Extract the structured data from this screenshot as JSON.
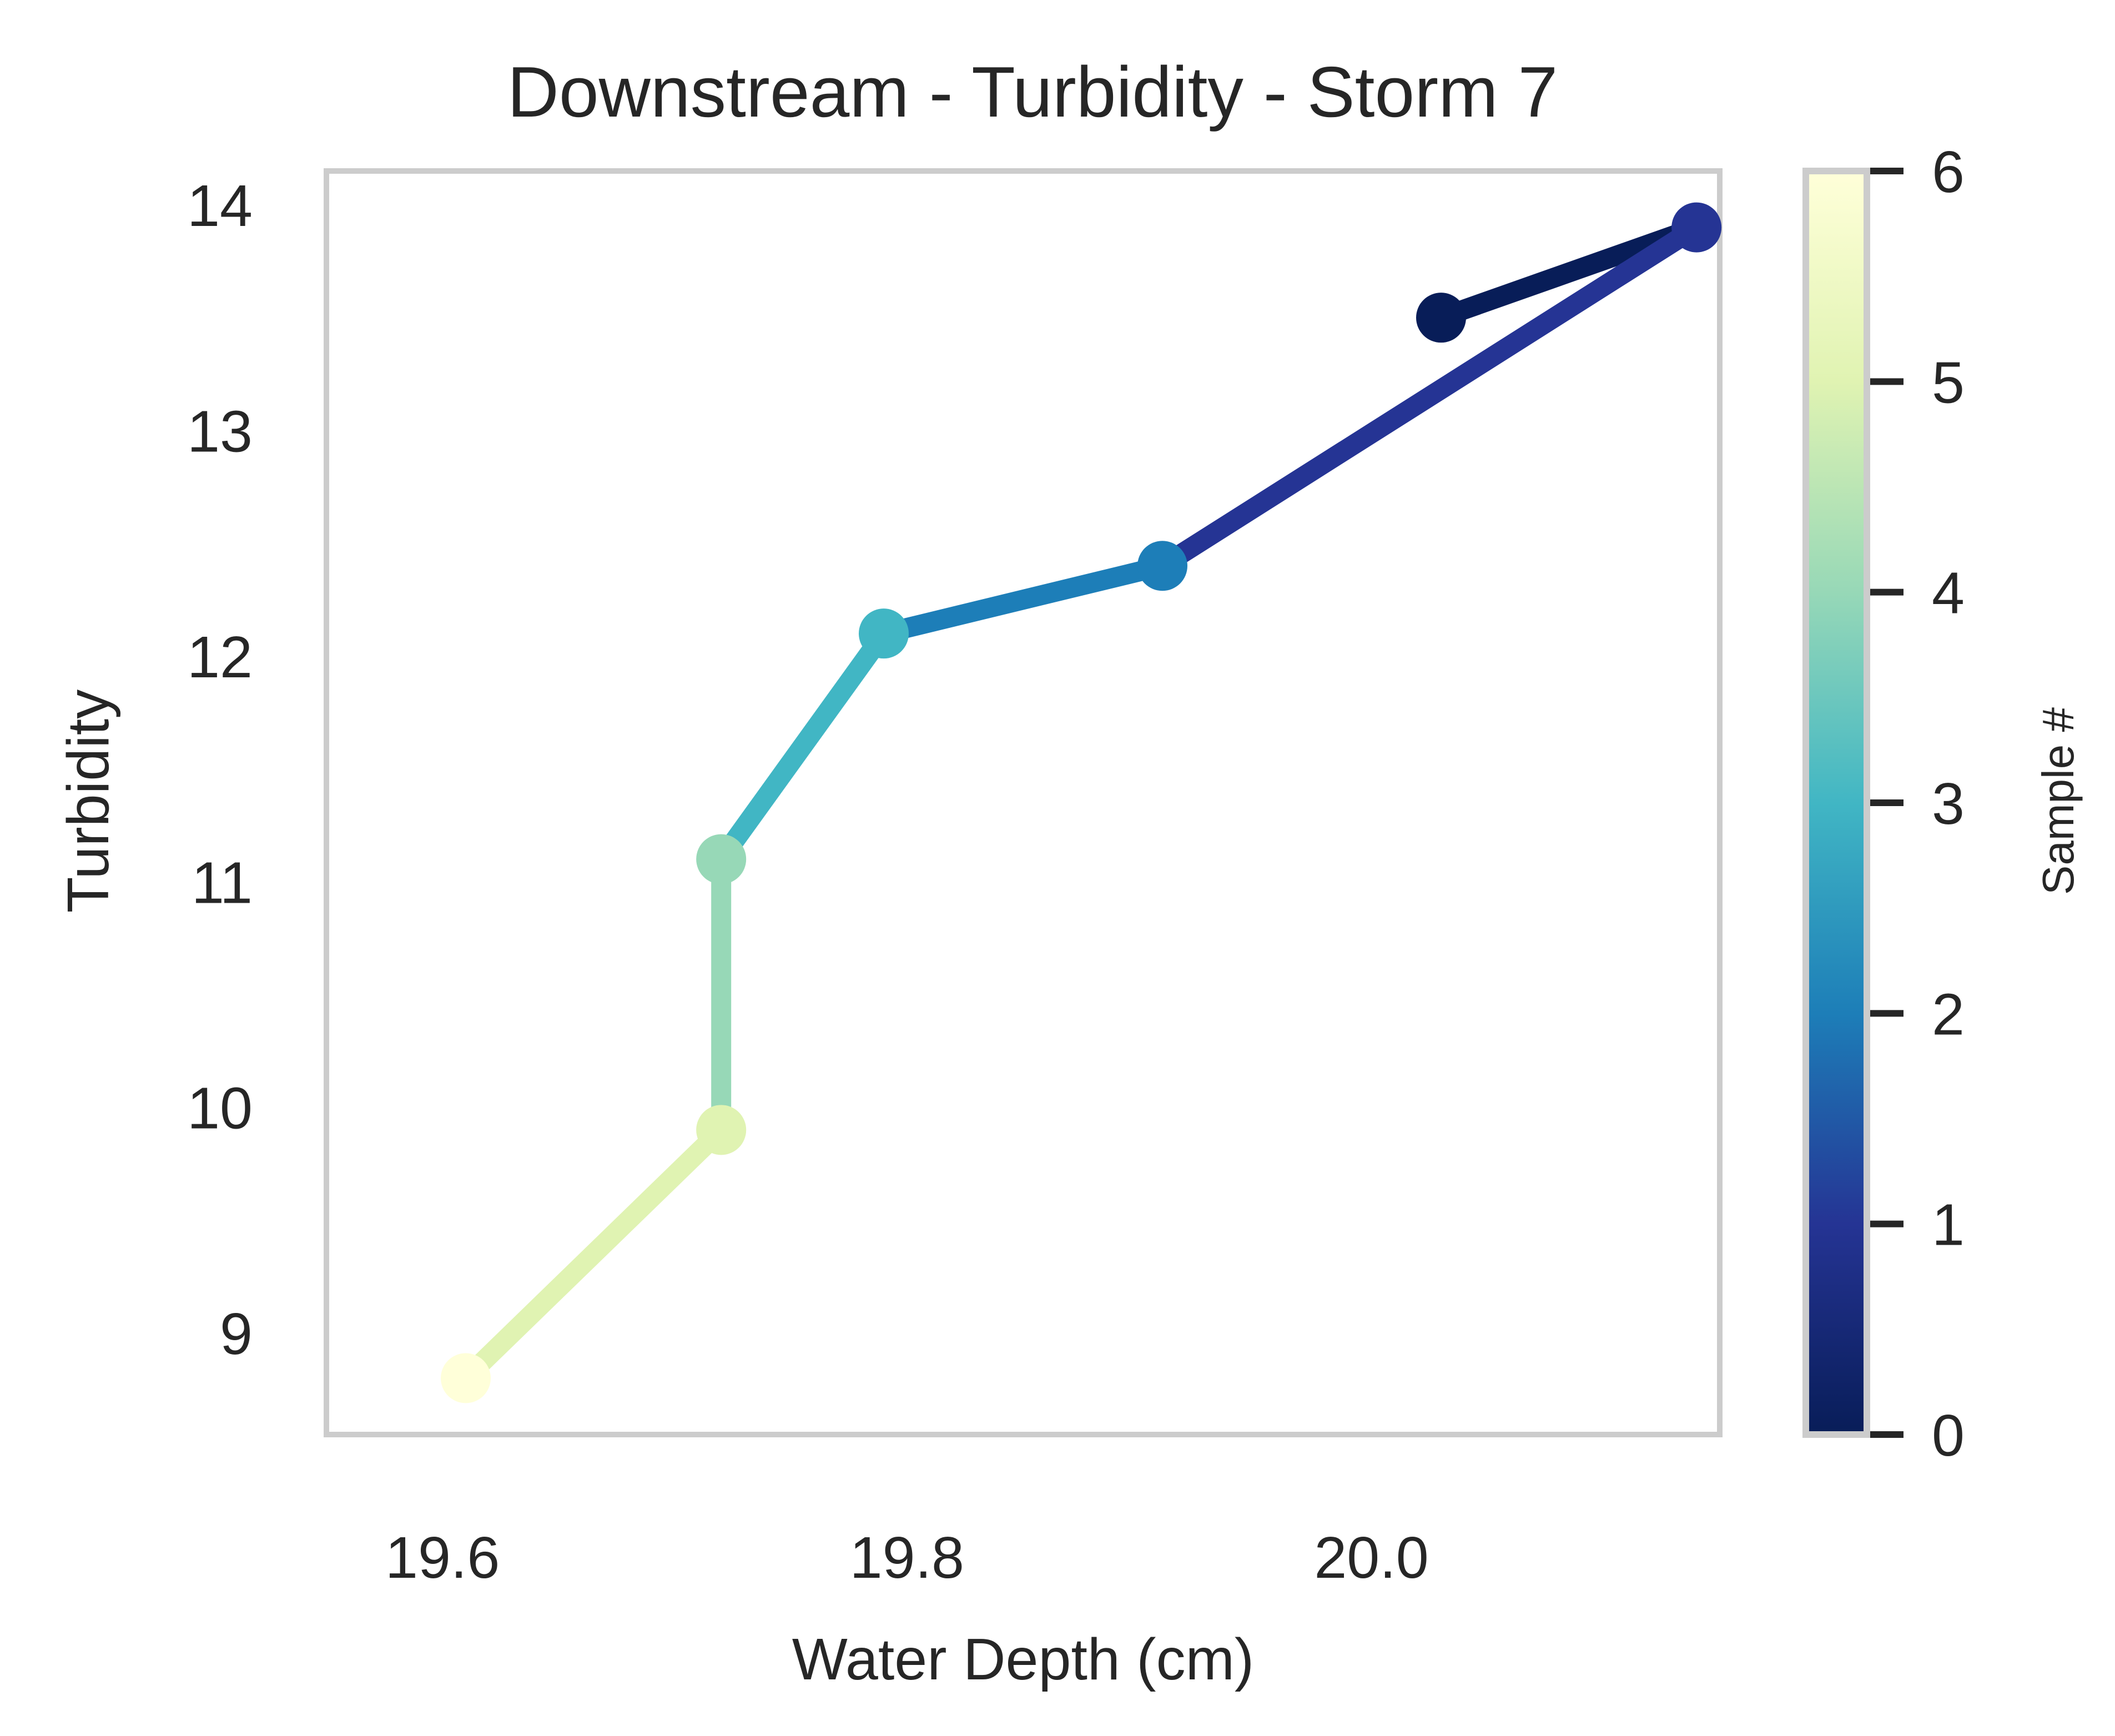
{
  "chart_data": {
    "type": "line",
    "title": "Downstream - Turbidity - Storm 7",
    "xlabel": "Water Depth (cm)",
    "ylabel": "Turbidity",
    "xlim": [
      19.55,
      20.15
    ],
    "ylim": [
      8.55,
      14.15
    ],
    "xticks": [
      19.6,
      19.8,
      20.0
    ],
    "xtick_labels": [
      "19.6",
      "19.8",
      "20.0"
    ],
    "yticks": [
      9,
      10,
      11,
      12,
      13,
      14
    ],
    "ytick_labels": [
      "9",
      "10",
      "11",
      "12",
      "13",
      "14"
    ],
    "grid": false,
    "points": [
      {
        "sample": 0,
        "x": 20.03,
        "y": 13.5
      },
      {
        "sample": 1,
        "x": 20.14,
        "y": 13.9
      },
      {
        "sample": 2,
        "x": 19.91,
        "y": 12.4
      },
      {
        "sample": 3,
        "x": 19.79,
        "y": 12.1
      },
      {
        "sample": 4,
        "x": 19.72,
        "y": 11.1
      },
      {
        "sample": 5,
        "x": 19.72,
        "y": 9.9
      },
      {
        "sample": 6,
        "x": 19.61,
        "y": 8.8
      }
    ],
    "colorbar": {
      "label": "Sample #",
      "range": [
        0,
        6
      ],
      "ticks": [
        0,
        1,
        2,
        3,
        4,
        5,
        6
      ],
      "tick_labels": [
        "0",
        "1",
        "2",
        "3",
        "4",
        "5",
        "6"
      ],
      "colormap": "YlGnBu_r",
      "colors": [
        "#081d58",
        "#253494",
        "#1d7eb8",
        "#41b6c4",
        "#97d8b7",
        "#e0f3b2",
        "#ffffd9"
      ]
    },
    "frame_color": "#cccccc"
  }
}
